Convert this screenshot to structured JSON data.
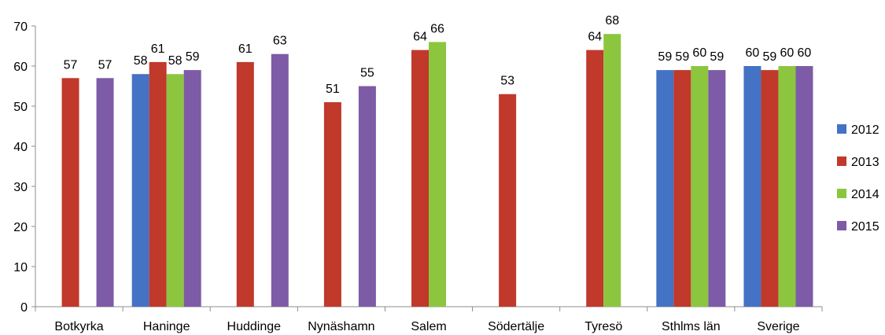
{
  "chart_data": {
    "type": "bar",
    "title": "",
    "xlabel": "",
    "ylabel": "",
    "ylim": [
      0,
      70
    ],
    "yticks": [
      0,
      10,
      20,
      30,
      40,
      50,
      60,
      70
    ],
    "grid": false,
    "legend_position": "right",
    "categories": [
      "Botkyrka",
      "Haninge",
      "Huddinge",
      "Nynäshamn",
      "Salem",
      "Södertälje",
      "Tyresö",
      "Sthlms län",
      "Sverige"
    ],
    "series": [
      {
        "name": "2012",
        "color": "#4472C4",
        "values": [
          null,
          58,
          null,
          null,
          null,
          null,
          null,
          59,
          60
        ]
      },
      {
        "name": "2013",
        "color": "#C0392B",
        "values": [
          57,
          61,
          61,
          51,
          64,
          53,
          64,
          59,
          59
        ]
      },
      {
        "name": "2014",
        "color": "#8CC63F",
        "values": [
          null,
          58,
          null,
          null,
          66,
          null,
          68,
          60,
          60
        ]
      },
      {
        "name": "2015",
        "color": "#7D5BA6",
        "values": [
          57,
          59,
          63,
          55,
          null,
          null,
          null,
          59,
          60
        ]
      }
    ]
  }
}
